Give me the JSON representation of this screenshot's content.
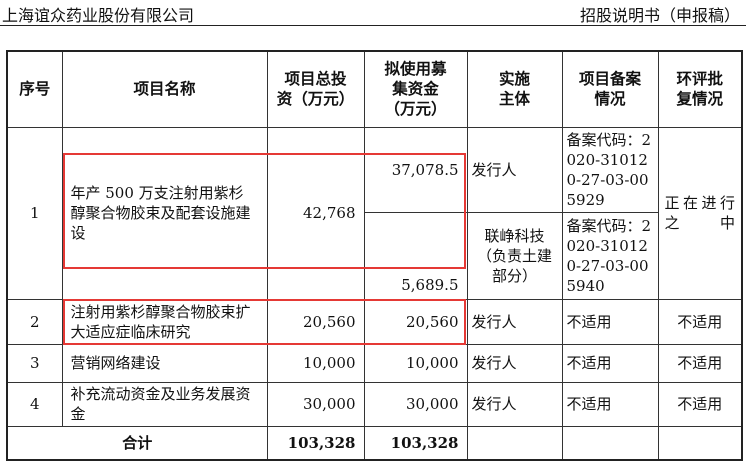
{
  "header": {
    "company": "上海谊众药业股份有限公司",
    "doc_type": "招股说明书（申报稿）"
  },
  "table": {
    "columns": [
      "序号",
      "项目名称",
      "项目总投资（万元）",
      "拟使用募集资金（万元）",
      "实施主体",
      "项目备案情况",
      "环评批复情况"
    ],
    "col_lines": {
      "total": [
        "项目总投",
        "资（万元）"
      ],
      "funds": [
        "拟使用募",
        "集资金",
        "（万元）"
      ],
      "entity": [
        "实施",
        "主体"
      ],
      "record": [
        "项目备案",
        "情况"
      ],
      "env": [
        "环评批",
        "复情况"
      ]
    },
    "rows": [
      {
        "no": "1",
        "name": "年产 500 万支注射用紫杉醇聚合物胶束及配套设施建设",
        "total": "42,768",
        "funds": [
          "37,078.5",
          "5,689.5"
        ],
        "entity": [
          "发行人",
          "联峥科技（负责土建部分）"
        ],
        "record": [
          "备案代码：2020-310120-27-03-005929",
          "备案代码：2020-310120-27-03-005940"
        ],
        "env": "正在进行之中"
      },
      {
        "no": "2",
        "name": "注射用紫杉醇聚合物胶束扩大适应症临床研究",
        "total": "20,560",
        "funds": "20,560",
        "entity": "发行人",
        "record": "不适用",
        "env": "不适用"
      },
      {
        "no": "3",
        "name": "营销网络建设",
        "total": "10,000",
        "funds": "10,000",
        "entity": "发行人",
        "record": "不适用",
        "env": "不适用"
      },
      {
        "no": "4",
        "name": "补充流动资金及业务发展资金",
        "total": "30,000",
        "funds": "30,000",
        "entity": "发行人",
        "record": "不适用",
        "env": "不适用"
      }
    ],
    "total_row": {
      "label": "合计",
      "total": "103,328",
      "funds": "103,328"
    }
  },
  "colors": {
    "highlight": "#e53935",
    "rule": "#222222"
  }
}
